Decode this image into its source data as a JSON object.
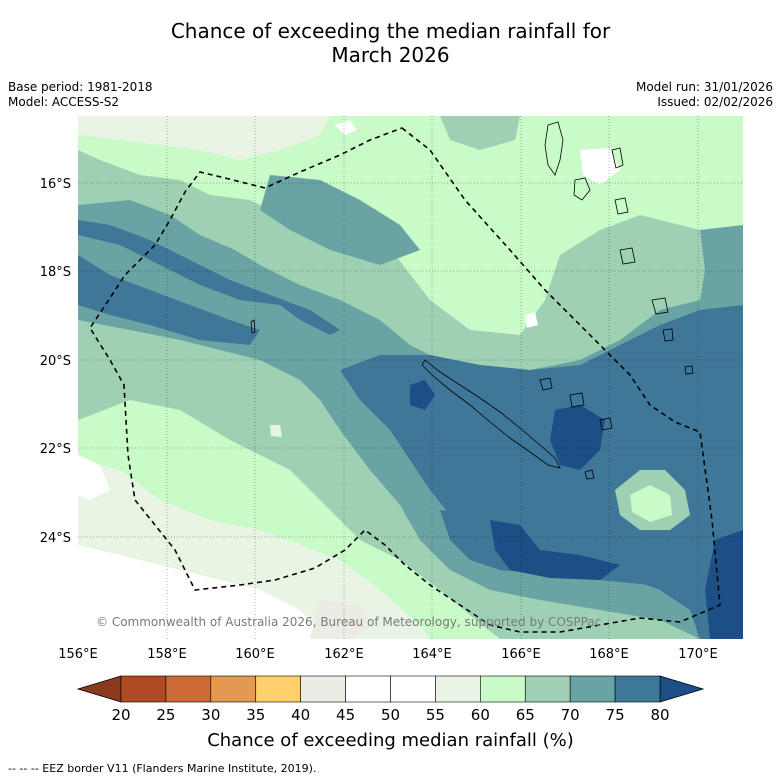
{
  "title_line1": "Chance of exceeding the median rainfall for",
  "title_line2": "March 2026",
  "base_period": "Base period: 1981-2018",
  "model": "Model: ACCESS-S2",
  "model_run": "Model run: 31/01/2026",
  "issued": "Issued: 02/02/2026",
  "copyright": "© Commonwealth of Australia 2026, Bureau of Meteorology, supported by COSPPac",
  "lon_labels": [
    "156°E",
    "158°E",
    "160°E",
    "162°E",
    "164°E",
    "166°E",
    "168°E",
    "170°E"
  ],
  "lat_labels": [
    "16°S",
    "18°S",
    "20°S",
    "22°S",
    "24°S"
  ],
  "colorbar": {
    "ticks": [
      "20",
      "25",
      "30",
      "35",
      "40",
      "45",
      "50",
      "55",
      "60",
      "65",
      "70",
      "75",
      "80"
    ],
    "colors": [
      "#8b3a1e",
      "#b14a24",
      "#cd6a35",
      "#e39a4e",
      "#fdd06a",
      "#ecebe4",
      "#ffffff",
      "#ffffff",
      "#e8f5e5",
      "#c9fbc8",
      "#9ed1b4",
      "#6aa3a4",
      "#3f7798",
      "#1b4f86"
    ],
    "label": "Chance of exceeding median rainfall (%)"
  },
  "footer": "--  --  -- EEZ border V11 (Flanders Marine Institute, 2019)."
}
